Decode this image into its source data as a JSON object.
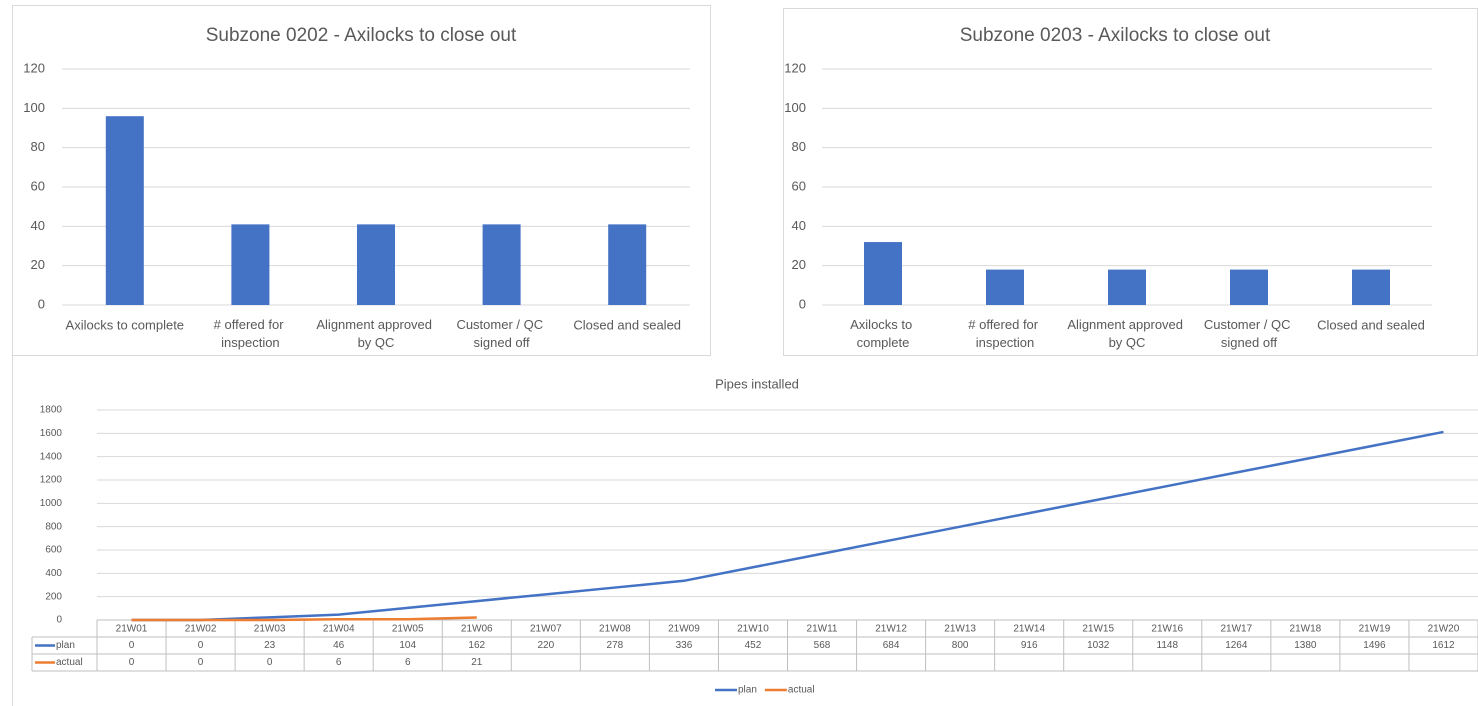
{
  "chart_data": [
    {
      "type": "bar",
      "title": "Subzone 0202 - Axilocks to close out",
      "categories": [
        "Axilocks to complete",
        "# offered for inspection",
        "Alignment approved by QC",
        "Customer / QC signed off",
        "Closed and sealed"
      ],
      "values": [
        96,
        41,
        41,
        41,
        41
      ],
      "color": "#4472c4",
      "ylim": [
        0,
        120
      ],
      "yticks": [
        0,
        20,
        40,
        60,
        80,
        100,
        120
      ],
      "grid": true
    },
    {
      "type": "bar",
      "title": "Subzone 0203 - Axilocks to close out",
      "categories": [
        "Axilocks to complete",
        "# offered for inspection",
        "Alignment approved by QC",
        "Customer / QC signed off",
        "Closed and sealed"
      ],
      "values": [
        32,
        18,
        18,
        18,
        18
      ],
      "color": "#4472c4",
      "ylim": [
        0,
        120
      ],
      "yticks": [
        0,
        20,
        40,
        60,
        80,
        100,
        120
      ],
      "grid": true
    },
    {
      "type": "line",
      "title": "Pipes installed",
      "categories": [
        "21W01",
        "21W02",
        "21W03",
        "21W04",
        "21W05",
        "21W06",
        "21W07",
        "21W08",
        "21W09",
        "21W10",
        "21W11",
        "21W12",
        "21W13",
        "21W14",
        "21W15",
        "21W16",
        "21W17",
        "21W18",
        "21W19",
        "21W20"
      ],
      "series": [
        {
          "name": "plan",
          "color": "#4472c4",
          "values": [
            0,
            0,
            23,
            46,
            104,
            162,
            220,
            278,
            336,
            452,
            568,
            684,
            800,
            916,
            1032,
            1148,
            1264,
            1380,
            1496,
            1612
          ]
        },
        {
          "name": "actual",
          "color": "#ed7d31",
          "values": [
            0,
            0,
            0,
            6,
            6,
            21,
            null,
            null,
            null,
            null,
            null,
            null,
            null,
            null,
            null,
            null,
            null,
            null,
            null,
            null
          ]
        }
      ],
      "ylim": [
        0,
        1800
      ],
      "yticks": [
        0,
        200,
        400,
        600,
        800,
        1000,
        1200,
        1400,
        1600,
        1800
      ],
      "grid": true,
      "data_table": true,
      "legend": "bottom"
    }
  ]
}
